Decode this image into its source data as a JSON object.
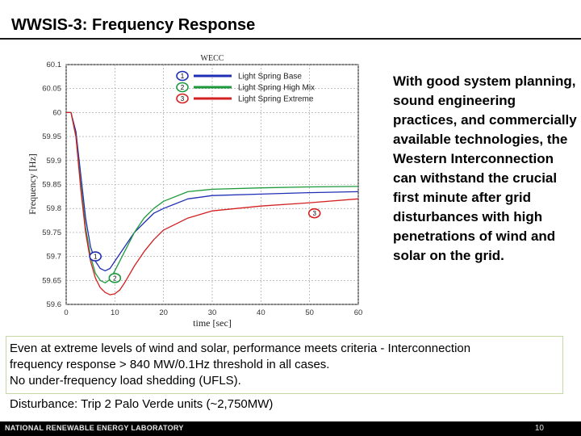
{
  "slide": {
    "title": "WWSIS-3: Frequency Response",
    "side_text": "With good system planning, sound engineering practices, and commercially available technologies, the Western Interconnection can withstand the crucial first minute after grid disturbances with high penetrations of wind and solar on the grid.",
    "callout_lines": [
      "Even at extreme levels of wind and solar, performance meets criteria - Interconnection",
      "frequency response > 840 MW/0.1Hz threshold in all cases.",
      "No under-frequency load shedding (UFLS)."
    ],
    "disturbance": "Disturbance: Trip 2 Palo Verde units (~2,750MW)",
    "footer_lab": "NATIONAL RENEWABLE ENERGY LABORATORY",
    "page_number": "10"
  },
  "chart_data": {
    "type": "line",
    "title": "WECC",
    "xlabel": "time [sec]",
    "ylabel": "Frequency [Hz]",
    "xlim": [
      0,
      60
    ],
    "ylim": [
      59.6,
      60.1
    ],
    "xticks": [
      "0",
      "10",
      "20",
      "30",
      "40",
      "50",
      "60"
    ],
    "yticks": [
      "60.1",
      "60.05",
      "60",
      "59.95",
      "59.9",
      "59.85",
      "59.8",
      "59.75",
      "59.7",
      "59.65",
      "59.6"
    ],
    "grid": true,
    "legend_position": "top-right",
    "series": [
      {
        "name": "Light Spring Base",
        "marker": "1",
        "color": "#1f2fb5",
        "x": [
          0,
          1,
          2,
          3,
          4,
          5,
          6,
          7,
          8,
          9,
          10,
          12,
          14,
          16,
          18,
          20,
          25,
          30,
          40,
          50,
          60
        ],
        "y": [
          60.0,
          60.0,
          59.96,
          59.87,
          59.78,
          59.72,
          59.69,
          59.675,
          59.67,
          59.675,
          59.69,
          59.72,
          59.75,
          59.77,
          59.79,
          59.8,
          59.82,
          59.827,
          59.83,
          59.833,
          59.835
        ]
      },
      {
        "name": "Light Spring High Mix",
        "marker": "2",
        "color": "#1e9a3e",
        "x": [
          0,
          1,
          2,
          3,
          4,
          5,
          6,
          7,
          8,
          9,
          10,
          12,
          14,
          16,
          18,
          20,
          25,
          30,
          40,
          50,
          60
        ],
        "y": [
          60.0,
          60.0,
          59.95,
          59.85,
          59.76,
          59.7,
          59.665,
          59.65,
          59.645,
          59.652,
          59.67,
          59.71,
          59.75,
          59.78,
          59.8,
          59.815,
          59.835,
          59.84,
          59.843,
          59.845,
          59.846
        ]
      },
      {
        "name": "Light Spring Extreme",
        "marker": "3",
        "color": "#d42020",
        "x": [
          0,
          1,
          2,
          3,
          4,
          5,
          6,
          7,
          8,
          9,
          10,
          11,
          12,
          14,
          16,
          18,
          20,
          25,
          30,
          40,
          50,
          60
        ],
        "y": [
          60.0,
          60.0,
          59.95,
          59.84,
          59.75,
          59.69,
          59.655,
          59.635,
          59.625,
          59.62,
          59.622,
          59.63,
          59.645,
          59.68,
          59.71,
          59.735,
          59.755,
          59.78,
          59.795,
          59.805,
          59.812,
          59.82
        ]
      }
    ],
    "annotations": [
      {
        "label": "1",
        "x": 6,
        "y": 59.7,
        "color": "#1f2fb5"
      },
      {
        "label": "2",
        "x": 10,
        "y": 59.655,
        "color": "#1e9a3e"
      },
      {
        "label": "3",
        "x": 51,
        "y": 59.79,
        "color": "#d42020"
      }
    ]
  }
}
